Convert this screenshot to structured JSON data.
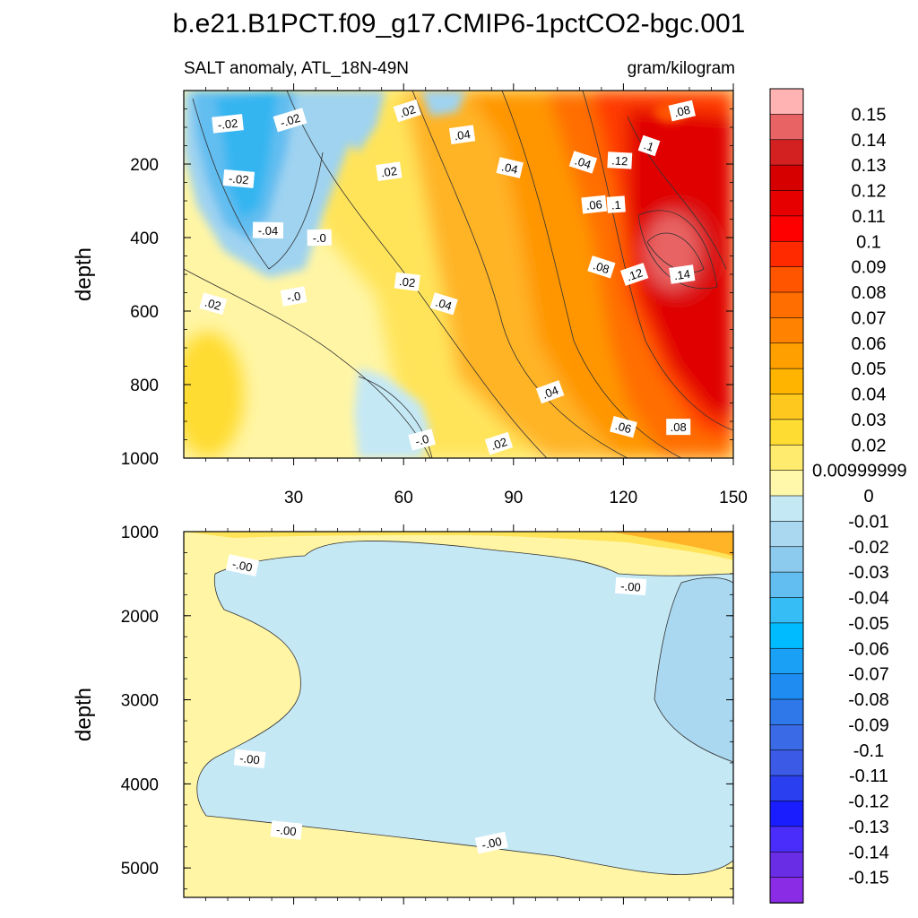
{
  "title": "b.e21.B1PCT.f09_g17.CMIP6-1pctCO2-bgc.001",
  "chart_data": [
    {
      "type": "contour",
      "panel": "upper",
      "left_title": "SALT anomaly, ATL_18N-49N",
      "right_title": "gram/kilogram",
      "xlabel": "",
      "ylabel": "depth",
      "xlim": [
        0,
        150
      ],
      "ylim": [
        1000,
        0
      ],
      "x_ticks": [
        30,
        60,
        90,
        120,
        150
      ],
      "x_tick_labels": [
        "30",
        "60",
        "90",
        "120",
        "150"
      ],
      "y_ticks": [
        200,
        400,
        600,
        800,
        1000
      ],
      "y_tick_labels": [
        "200",
        "400",
        "600",
        "800",
        "1000"
      ],
      "contour_labels": [
        {
          "text": "-.02",
          "x": 12,
          "y": 90
        },
        {
          "text": "-.02",
          "x": 29,
          "y": 80
        },
        {
          "text": ".02",
          "x": 61,
          "y": 55
        },
        {
          "text": ".04",
          "x": 76,
          "y": 120
        },
        {
          "text": "-.02",
          "x": 15,
          "y": 240
        },
        {
          "text": ".02",
          "x": 56,
          "y": 220
        },
        {
          "text": ".04",
          "x": 89,
          "y": 210
        },
        {
          "text": ".04",
          "x": 109,
          "y": 195
        },
        {
          "text": ".12",
          "x": 119,
          "y": 190
        },
        {
          "text": ".1",
          "x": 127,
          "y": 150
        },
        {
          "text": ".08",
          "x": 136,
          "y": 55
        },
        {
          "text": ".06",
          "x": 112,
          "y": 310
        },
        {
          "text": ".1",
          "x": 118,
          "y": 310
        },
        {
          "text": "-.04",
          "x": 23,
          "y": 380
        },
        {
          "text": "-.0",
          "x": 37,
          "y": 400
        },
        {
          "text": ".08",
          "x": 114,
          "y": 480
        },
        {
          "text": ".12",
          "x": 123,
          "y": 500
        },
        {
          "text": ".14",
          "x": 136,
          "y": 500
        },
        {
          "text": ".02",
          "x": 61,
          "y": 520
        },
        {
          "text": "-.0",
          "x": 30,
          "y": 560
        },
        {
          "text": ".02",
          "x": 8,
          "y": 580
        },
        {
          "text": ".04",
          "x": 71,
          "y": 580
        },
        {
          "text": ".04",
          "x": 100,
          "y": 820
        },
        {
          "text": ".06",
          "x": 120,
          "y": 915
        },
        {
          "text": ".08",
          "x": 135,
          "y": 915
        },
        {
          "text": "-.0",
          "x": 65,
          "y": 950
        },
        {
          "text": ".02",
          "x": 86,
          "y": 960
        }
      ]
    },
    {
      "type": "contour",
      "panel": "lower",
      "xlabel": "",
      "ylabel": "depth",
      "xlim": [
        0,
        150
      ],
      "ylim": [
        5350,
        1000
      ],
      "y_ticks": [
        1000,
        2000,
        3000,
        4000,
        5000
      ],
      "y_tick_labels": [
        "1000",
        "2000",
        "3000",
        "4000",
        "5000"
      ],
      "contour_labels": [
        {
          "text": "-.00",
          "x": 16,
          "y": 1400
        },
        {
          "text": "-.00",
          "x": 122,
          "y": 1650
        },
        {
          "text": "-.00",
          "x": 18,
          "y": 3700
        },
        {
          "text": "-.00",
          "x": 28,
          "y": 4550
        },
        {
          "text": "-.00",
          "x": 84,
          "y": 4700
        }
      ]
    }
  ],
  "colorbar": {
    "labels": [
      "0.15",
      "0.14",
      "0.13",
      "0.12",
      "0.11",
      "0.1",
      "0.09",
      "0.08",
      "0.07",
      "0.06",
      "0.05",
      "0.04",
      "0.03",
      "0.02",
      "0.00999999",
      "0",
      "-0.01",
      "-0.02",
      "-0.03",
      "-0.04",
      "-0.05",
      "-0.06",
      "-0.07",
      "-0.08",
      "-0.09",
      "-0.1",
      "-0.11",
      "-0.12",
      "-0.13",
      "-0.14",
      "-0.15"
    ],
    "colors": [
      "#ffb3b3",
      "#e86464",
      "#d32020",
      "#d70000",
      "#e60000",
      "#ff0000",
      "#ff2a00",
      "#ff5500",
      "#ff6e00",
      "#ff8200",
      "#ffa000",
      "#ffb400",
      "#ffc81e",
      "#ffdc32",
      "#ffeb6e",
      "#fff8aa",
      "#c5e8f5",
      "#aad8f0",
      "#8ccbee",
      "#62bdf0",
      "#36bdf5",
      "#00bbff",
      "#1aa0f5",
      "#1e8cf0",
      "#2e78ea",
      "#3b6ae6",
      "#3b5ae6",
      "#2a40f0",
      "#1a1eff",
      "#4a2dfa",
      "#6a2de6",
      "#8a2be6"
    ]
  }
}
